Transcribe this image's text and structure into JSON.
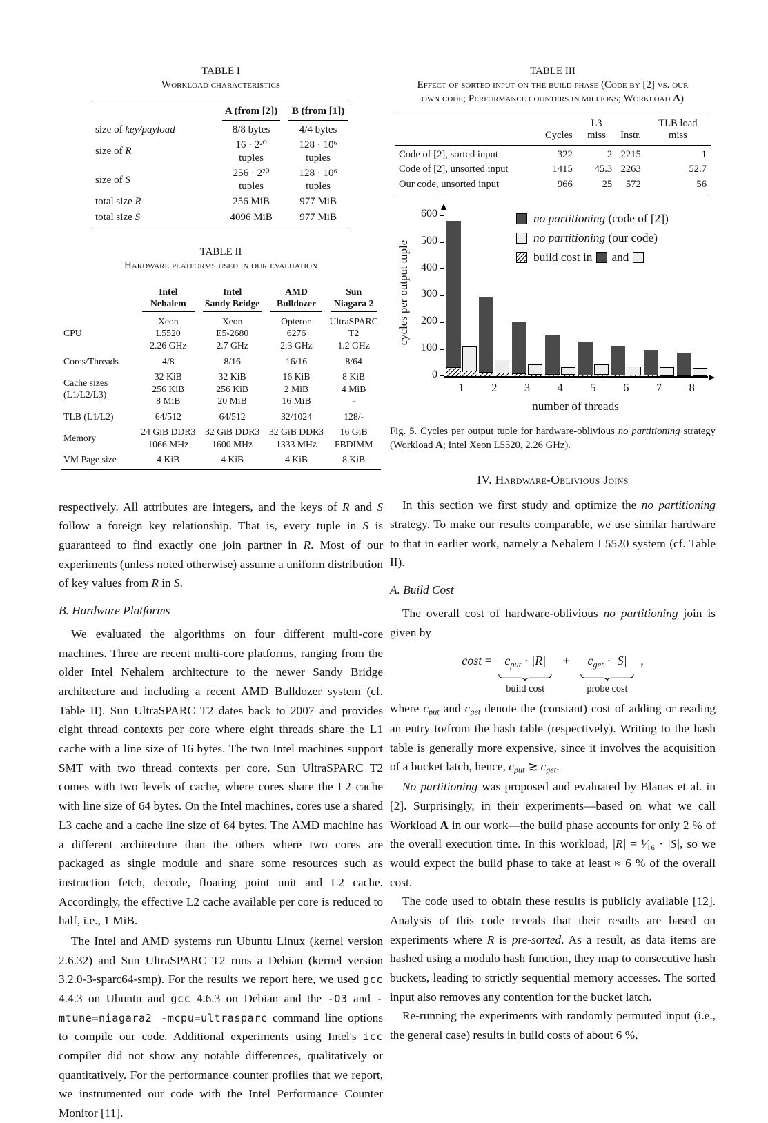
{
  "tables": {
    "t1": {
      "number": "TABLE I",
      "caption_runs": [
        {
          "t": "Workload characteristics",
          "s": "sc"
        }
      ],
      "align": "c",
      "header_rule": "per-col",
      "col_headers": [
        [
          {
            "t": "A",
            "s": "b"
          },
          {
            "t": " (from [2])"
          }
        ],
        [
          {
            "t": "B",
            "s": "b"
          },
          {
            "t": " (from [1])"
          }
        ]
      ],
      "rows": [
        {
          "label": [
            {
              "t": "size of "
            },
            {
              "t": "key/payload",
              "s": "i"
            }
          ],
          "cells": [
            "8/8 bytes",
            "4/4 bytes"
          ]
        },
        {
          "label": [
            {
              "t": "size of "
            },
            {
              "t": "R",
              "s": "i"
            }
          ],
          "cells": [
            "16 · 2²⁰ tuples",
            "128 · 10⁶ tuples"
          ]
        },
        {
          "label": [
            {
              "t": "size of "
            },
            {
              "t": "S",
              "s": "i"
            }
          ],
          "cells": [
            "256 · 2²⁰ tuples",
            "128 · 10⁶ tuples"
          ]
        },
        {
          "label": [
            {
              "t": "total size "
            },
            {
              "t": "R",
              "s": "i"
            }
          ],
          "cells": [
            "256 MiB",
            "977 MiB"
          ]
        },
        {
          "label": [
            {
              "t": "total size "
            },
            {
              "t": "S",
              "s": "i"
            }
          ],
          "cells": [
            "4096 MiB",
            "977 MiB"
          ]
        }
      ]
    },
    "t2": {
      "number": "TABLE II",
      "caption_runs": [
        {
          "t": "Hardware platforms used in our evaluation",
          "s": "sc"
        }
      ],
      "align": "c",
      "header_rule": "per-col",
      "col_headers": [
        [
          {
            "t": "Intel\nNehalem",
            "s": "b"
          }
        ],
        [
          {
            "t": "Intel\nSandy Bridge",
            "s": "b"
          }
        ],
        [
          {
            "t": "AMD\nBulldozer",
            "s": "b"
          }
        ],
        [
          {
            "t": "Sun\nNiagara 2",
            "s": "b"
          }
        ]
      ],
      "rows": [
        {
          "label": "CPU",
          "cells": [
            "Xeon\nL5520\n2.26 GHz",
            "Xeon\nE5-2680\n2.7 GHz",
            "Opteron\n6276\n2.3 GHz",
            "UltraSPARC\nT2\n1.2 GHz"
          ]
        },
        {
          "label": "Cores/Threads",
          "cells": [
            "4/8",
            "8/16",
            "16/16",
            "8/64"
          ]
        },
        {
          "label": "Cache sizes\n(L1/L2/L3)",
          "cells": [
            "32 KiB\n256 KiB\n8 MiB",
            "32 KiB\n256 KiB\n20 MiB",
            "16 KiB\n2 MiB\n16 MiB",
            "8 KiB\n4 MiB\n-"
          ]
        },
        {
          "label": "TLB (L1/L2)",
          "cells": [
            "64/512",
            "64/512",
            "32/1024",
            "128/-"
          ]
        },
        {
          "label": "Memory",
          "cells": [
            "24 GiB DDR3\n1066 MHz",
            "32 GiB DDR3\n1600 MHz",
            "32 GiB DDR3\n1333 MHz",
            "16 GiB\nFBDIMM"
          ]
        },
        {
          "label": "VM Page size",
          "cells": [
            "4 KiB",
            "4 KiB",
            "4 KiB",
            "8 KiB"
          ]
        }
      ]
    },
    "t3": {
      "number": "TABLE III",
      "caption_runs": [
        {
          "t": "Effect of sorted input on the build phase (Code by [2] vs. our\nown code; Performance counters in millions; Workload ",
          "s": "sc"
        },
        {
          "t": "A",
          "s": "scb"
        },
        {
          "t": ")",
          "s": "sc"
        }
      ],
      "align": "r",
      "header_rule": "full",
      "col_headers": [
        [
          {
            "t": "Cycles"
          }
        ],
        [
          {
            "t": "L3 miss"
          }
        ],
        [
          {
            "t": "Instr."
          }
        ],
        [
          {
            "t": "TLB load miss"
          }
        ]
      ],
      "rows": [
        {
          "label": "Code of [2], sorted input",
          "cells": [
            "322",
            "2",
            "2215",
            "1"
          ]
        },
        {
          "label": "Code of [2], unsorted input",
          "cells": [
            "1415",
            "45.3",
            "2263",
            "52.7"
          ]
        },
        {
          "label": "Our code, unsorted input",
          "cells": [
            "966",
            "25",
            "572",
            "56"
          ]
        }
      ]
    }
  },
  "figure": {
    "chart_data": {
      "type": "bar",
      "categories": [
        "1",
        "2",
        "3",
        "4",
        "5",
        "6",
        "7",
        "8"
      ],
      "series": [
        {
          "name": "no partitioning (code of [2])",
          "values": [
            580,
            295,
            200,
            155,
            127,
            110,
            97,
            87
          ],
          "color": "#4a4a4a"
        },
        {
          "name": "no partitioning (our code)",
          "values": [
            110,
            60,
            42,
            33,
            44,
            36,
            33,
            30
          ],
          "color": "#ededed"
        },
        {
          "name": "build cost in code of [2]",
          "values": [
            32,
            14,
            10,
            7,
            5,
            4,
            3,
            2
          ],
          "pattern": "hatch"
        },
        {
          "name": "build cost in our code",
          "values": [
            20,
            11,
            6,
            6,
            6,
            3,
            2,
            2
          ],
          "pattern": "hatch"
        }
      ],
      "title": "",
      "xlabel": "number of threads",
      "ylabel": "cycles per output tuple",
      "ylim": [
        0,
        620
      ],
      "yticks": [
        0,
        100,
        200,
        300,
        400,
        500,
        600
      ],
      "grid": false,
      "legend_position": "top-right-inside",
      "legend": [
        [
          {
            "sw": "dark"
          },
          {
            "t": "no partitioning",
            "s": "i"
          },
          {
            "t": " (code of [2])"
          }
        ],
        [
          {
            "sw": "light"
          },
          {
            "t": "no partitioning",
            "s": "i"
          },
          {
            "t": " (our code)"
          }
        ],
        [
          {
            "sw": "hatch"
          },
          {
            "t": "build cost in"
          },
          {
            "sw": "dark"
          },
          {
            "t": "and"
          },
          {
            "sw": "light"
          }
        ]
      ]
    },
    "caption_runs": [
      {
        "t": "Fig. 5.   Cycles per output tuple for hardware-oblivious "
      },
      {
        "t": "no partitioning",
        "s": "i"
      },
      {
        "t": " strategy (Workload "
      },
      {
        "t": "A",
        "s": "b"
      },
      {
        "t": "; Intel Xeon L5520, 2.26 GHz)."
      }
    ]
  },
  "left": {
    "p1_runs": [
      {
        "t": "respectively. All attributes are integers, and the keys of "
      },
      {
        "t": "R",
        "s": "i"
      },
      {
        "t": " and "
      },
      {
        "t": "S",
        "s": "i"
      },
      {
        "t": " follow a foreign key relationship. That is, every tuple in "
      },
      {
        "t": "S",
        "s": "i"
      },
      {
        "t": " is guaranteed to find exactly one join partner in "
      },
      {
        "t": "R",
        "s": "i"
      },
      {
        "t": ". Most of our experiments (unless noted otherwise) assume a uniform distribution of key values from "
      },
      {
        "t": "R",
        "s": "i"
      },
      {
        "t": " in "
      },
      {
        "t": "S",
        "s": "i"
      },
      {
        "t": "."
      }
    ],
    "secB": "B. Hardware Platforms",
    "p2_runs": [
      {
        "t": "We evaluated the algorithms on four different multi-core machines. Three are recent multi-core platforms, ranging from the older Intel Nehalem architecture to the newer Sandy Bridge architecture and including a recent AMD Bulldozer system (cf. Table II). Sun UltraSPARC T2 dates back to 2007 and provides eight thread contexts per core where eight threads share the L1 cache with a line size of 16 bytes. The two Intel machines support SMT with two thread contexts per core. Sun UltraSPARC T2 comes with two levels of cache, where cores share the L2 cache with line size of 64 bytes. On the Intel machines, cores use a shared L3 cache and a cache line size of 64 bytes. The AMD machine has a different architecture than the others where two cores are packaged as single module and share some resources such as instruction fetch, decode, floating point unit and L2 cache. Accordingly, the effective L2 cache available per core is reduced to half, i.e., 1 MiB."
      }
    ],
    "p3_runs": [
      {
        "t": "The Intel and AMD systems run Ubuntu Linux (kernel version 2.6.32) and Sun UltraSPARC T2 runs a Debian (kernel version 3.2.0-3-sparc64-smp). For the results we report here, we used "
      },
      {
        "t": "gcc",
        "s": "m"
      },
      {
        "t": " 4.4.3 on Ubuntu and "
      },
      {
        "t": "gcc",
        "s": "m"
      },
      {
        "t": " 4.6.3 on Debian and the "
      },
      {
        "t": "-O3",
        "s": "m"
      },
      {
        "t": " and "
      },
      {
        "t": "-mtune=niagara2 -mcpu=ultrasparc",
        "s": "m"
      },
      {
        "t": " command line options to compile our code. Additional experiments using Intel's "
      },
      {
        "t": "icc",
        "s": "m"
      },
      {
        "t": " compiler did not show any notable differences, qualitatively or quantitatively. For the performance counter profiles that we report, we instrumented our code with the Intel Performance Counter Monitor [11]."
      }
    ]
  },
  "right": {
    "sec4": "IV.  Hardware-Oblivious Joins",
    "p1_runs": [
      {
        "t": "In this section we first study and optimize the "
      },
      {
        "t": "no partitioning",
        "s": "i"
      },
      {
        "t": " strategy. To make our results comparable, we use similar hardware to that in earlier work, namely a Nehalem L5520 system (cf. Table II)."
      }
    ],
    "secA": "A. Build Cost",
    "p2_runs": [
      {
        "t": "The overall cost of hardware-oblivious "
      },
      {
        "t": "no partitioning",
        "s": "i"
      },
      {
        "t": " join is given by"
      }
    ],
    "equation": {
      "lhs_runs": [
        {
          "t": "cost",
          "s": "i"
        },
        {
          "t": "  =",
          "s": ""
        }
      ],
      "g1_runs": [
        {
          "t": "c",
          "s": "i"
        },
        {
          "t": "put",
          "s": "isub"
        },
        {
          "t": " · "
        },
        {
          "t": "|R|",
          "s": "i"
        }
      ],
      "plus": "+",
      "g2_runs": [
        {
          "t": "c",
          "s": "i"
        },
        {
          "t": "get",
          "s": "isub"
        },
        {
          "t": " · "
        },
        {
          "t": "|S|",
          "s": "i"
        }
      ],
      "comma": ",",
      "label1": "build cost",
      "label2": "probe cost"
    },
    "p3_runs": [
      {
        "t": "where "
      },
      {
        "t": "c",
        "s": "i"
      },
      {
        "t": "put",
        "s": "isub"
      },
      {
        "t": " and "
      },
      {
        "t": "c",
        "s": "i"
      },
      {
        "t": "get",
        "s": "isub"
      },
      {
        "t": " denote the (constant) cost of adding or reading an entry to/from the hash table (respectively). Writing to the hash table is generally more expensive, since it involves the acquisition of a bucket latch, hence, "
      },
      {
        "t": "c",
        "s": "i"
      },
      {
        "t": "put",
        "s": "isub"
      },
      {
        "t": " ≳ "
      },
      {
        "t": "c",
        "s": "i"
      },
      {
        "t": "get",
        "s": "isub"
      },
      {
        "t": "."
      }
    ],
    "p4_runs": [
      {
        "t": "No partitioning",
        "s": "i"
      },
      {
        "t": " was proposed and evaluated by Blanas et al. in [2]. Surprisingly, in their experiments—based on what we call Workload "
      },
      {
        "t": "A",
        "s": "b"
      },
      {
        "t": " in our work—the build phase accounts for only 2 % of the overall execution time. In this workload, "
      },
      {
        "t": "|R|",
        "s": "i"
      },
      {
        "t": " = ¹⁄₁₆ · "
      },
      {
        "t": "|S|",
        "s": "i"
      },
      {
        "t": ", so we would expect the build phase to take at least ≈ 6 % of the overall cost."
      }
    ],
    "p5_runs": [
      {
        "t": "The code used to obtain these results is publicly available [12]. Analysis of this code reveals that their results are based on experiments where "
      },
      {
        "t": "R",
        "s": "i"
      },
      {
        "t": " is "
      },
      {
        "t": "pre-sorted",
        "s": "i"
      },
      {
        "t": ". As a result, as data items are hashed using a modulo hash function, they map to consecutive hash buckets, leading to strictly sequential memory accesses. The sorted input also removes any contention for the bucket latch."
      }
    ],
    "p6_runs": [
      {
        "t": "Re-running the experiments with randomly permuted input (i.e., the general case) results in build costs of about 6 %,"
      }
    ]
  }
}
